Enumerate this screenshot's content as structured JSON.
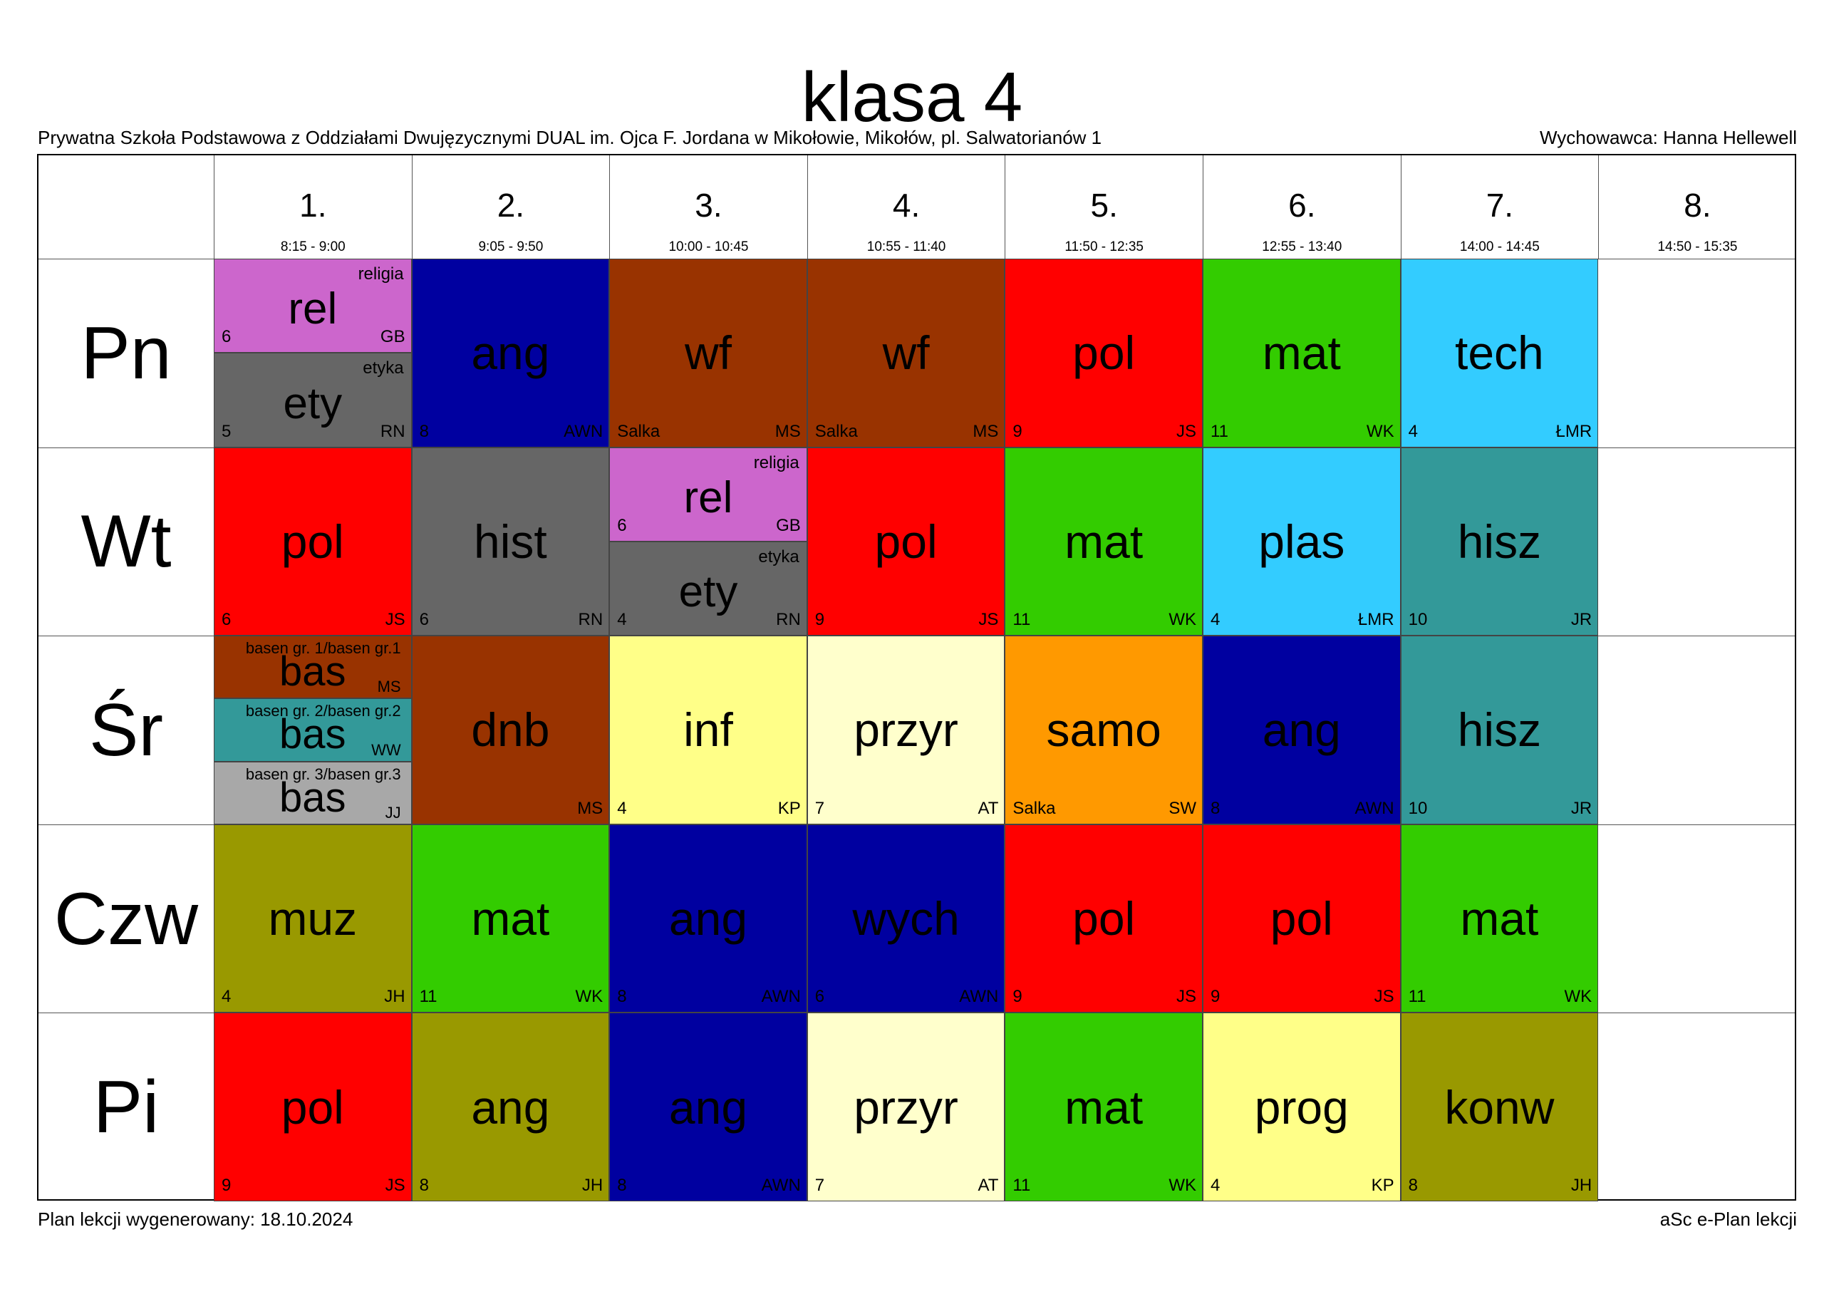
{
  "title": "klasa 4",
  "school": "Prywatna Szkoła Podstawowa z Oddziałami Dwujęzycznymi DUAL im. Ojca F. Jordana w Mikołowie, Mikołów, pl. Salwatorianów 1",
  "homeroom": "Wychowawca: Hanna Hellewell",
  "footer": {
    "generated": "Plan lekcji wygenerowany: 18.10.2024",
    "software": "aSc e-Plan lekcji"
  },
  "colors": {
    "rel": "#CC66CC",
    "ety": "#666666",
    "ang_blue": "#0000A0",
    "wf": "#993300",
    "pol": "#FF0000",
    "mat": "#33CC00",
    "tech": "#33CCFF",
    "hist": "#666666",
    "plas": "#33CCFF",
    "hisz": "#339999",
    "bas1": "#993300",
    "bas2": "#339999",
    "bas3": "#A8A8A8",
    "dnb": "#993300",
    "inf": "#FFFF88",
    "przyr": "#FFFFCC",
    "samo": "#FF9900",
    "muz": "#999900",
    "ang_olive": "#999900",
    "prog": "#FFFF88",
    "konw": "#999900"
  },
  "periods": [
    {
      "num": "1.",
      "time": "8:15 - 9:00"
    },
    {
      "num": "2.",
      "time": "9:05 - 9:50"
    },
    {
      "num": "3.",
      "time": "10:00 - 10:45"
    },
    {
      "num": "4.",
      "time": "10:55 - 11:40"
    },
    {
      "num": "5.",
      "time": "11:50 - 12:35"
    },
    {
      "num": "6.",
      "time": "12:55 - 13:40"
    },
    {
      "num": "7.",
      "time": "14:00 - 14:45"
    },
    {
      "num": "8.",
      "time": "14:50 - 15:35"
    }
  ],
  "days": [
    "Pn",
    "Wt",
    "Śr",
    "Czw",
    "Pi"
  ],
  "lessons": [
    {
      "day": 0,
      "period": 0,
      "subject": "rel",
      "fullname": "religia",
      "room": "6",
      "teacher": "GB",
      "color": "#CC66CC",
      "part": 0,
      "parts": 2
    },
    {
      "day": 0,
      "period": 0,
      "subject": "ety",
      "fullname": "etyka",
      "room": "5",
      "teacher": "RN",
      "color": "#666666",
      "part": 1,
      "parts": 2
    },
    {
      "day": 0,
      "period": 1,
      "subject": "ang",
      "room": "8",
      "teacher": "AWN",
      "color": "#0000A0"
    },
    {
      "day": 0,
      "period": 2,
      "subject": "wf",
      "room": "Salka",
      "teacher": "MS",
      "color": "#993300"
    },
    {
      "day": 0,
      "period": 3,
      "subject": "wf",
      "room": "Salka",
      "teacher": "MS",
      "color": "#993300"
    },
    {
      "day": 0,
      "period": 4,
      "subject": "pol",
      "room": "9",
      "teacher": "JS",
      "color": "#FF0000"
    },
    {
      "day": 0,
      "period": 5,
      "subject": "mat",
      "room": "11",
      "teacher": "WK",
      "color": "#33CC00"
    },
    {
      "day": 0,
      "period": 6,
      "subject": "tech",
      "room": "4",
      "teacher": "ŁMR",
      "color": "#33CCFF"
    },
    {
      "day": 1,
      "period": 0,
      "subject": "pol",
      "room": "6",
      "teacher": "JS",
      "color": "#FF0000"
    },
    {
      "day": 1,
      "period": 1,
      "subject": "hist",
      "room": "6",
      "teacher": "RN",
      "color": "#666666"
    },
    {
      "day": 1,
      "period": 2,
      "subject": "rel",
      "fullname": "religia",
      "room": "6",
      "teacher": "GB",
      "color": "#CC66CC",
      "part": 0,
      "parts": 2
    },
    {
      "day": 1,
      "period": 2,
      "subject": "ety",
      "fullname": "etyka",
      "room": "4",
      "teacher": "RN",
      "color": "#666666",
      "part": 1,
      "parts": 2
    },
    {
      "day": 1,
      "period": 3,
      "subject": "pol",
      "room": "9",
      "teacher": "JS",
      "color": "#FF0000"
    },
    {
      "day": 1,
      "period": 4,
      "subject": "mat",
      "room": "11",
      "teacher": "WK",
      "color": "#33CC00"
    },
    {
      "day": 1,
      "period": 5,
      "subject": "plas",
      "room": "4",
      "teacher": "ŁMR",
      "color": "#33CCFF"
    },
    {
      "day": 1,
      "period": 6,
      "subject": "hisz",
      "room": "10",
      "teacher": "JR",
      "color": "#339999"
    },
    {
      "day": 2,
      "period": 0,
      "subject": "bas",
      "fullname": "basen gr. 1/basen gr.1",
      "teacher": "MS",
      "color": "#993300",
      "part": 0,
      "parts": 3
    },
    {
      "day": 2,
      "period": 0,
      "subject": "bas",
      "fullname": "basen gr. 2/basen gr.2",
      "teacher": "WW",
      "color": "#339999",
      "part": 1,
      "parts": 3
    },
    {
      "day": 2,
      "period": 0,
      "subject": "bas",
      "fullname": "basen gr. 3/basen gr.3",
      "teacher": "JJ",
      "color": "#A8A8A8",
      "part": 2,
      "parts": 3
    },
    {
      "day": 2,
      "period": 1,
      "subject": "dnb",
      "room": "",
      "teacher": "MS",
      "color": "#993300"
    },
    {
      "day": 2,
      "period": 2,
      "subject": "inf",
      "room": "4",
      "teacher": "KP",
      "color": "#FFFF88"
    },
    {
      "day": 2,
      "period": 3,
      "subject": "przyr",
      "room": "7",
      "teacher": "AT",
      "color": "#FFFFCC"
    },
    {
      "day": 2,
      "period": 4,
      "subject": "samo",
      "room": "Salka",
      "teacher": "SW",
      "color": "#FF9900"
    },
    {
      "day": 2,
      "period": 5,
      "subject": "ang",
      "room": "8",
      "teacher": "AWN",
      "color": "#0000A0"
    },
    {
      "day": 2,
      "period": 6,
      "subject": "hisz",
      "room": "10",
      "teacher": "JR",
      "color": "#339999"
    },
    {
      "day": 3,
      "period": 0,
      "subject": "muz",
      "room": "4",
      "teacher": "JH",
      "color": "#999900"
    },
    {
      "day": 3,
      "period": 1,
      "subject": "mat",
      "room": "11",
      "teacher": "WK",
      "color": "#33CC00"
    },
    {
      "day": 3,
      "period": 2,
      "subject": "ang",
      "room": "8",
      "teacher": "AWN",
      "color": "#0000A0"
    },
    {
      "day": 3,
      "period": 3,
      "subject": "wych",
      "room": "6",
      "teacher": "AWN",
      "color": "#0000A0"
    },
    {
      "day": 3,
      "period": 4,
      "subject": "pol",
      "room": "9",
      "teacher": "JS",
      "color": "#FF0000"
    },
    {
      "day": 3,
      "period": 5,
      "subject": "pol",
      "room": "9",
      "teacher": "JS",
      "color": "#FF0000"
    },
    {
      "day": 3,
      "period": 6,
      "subject": "mat",
      "room": "11",
      "teacher": "WK",
      "color": "#33CC00"
    },
    {
      "day": 4,
      "period": 0,
      "subject": "pol",
      "room": "9",
      "teacher": "JS",
      "color": "#FF0000"
    },
    {
      "day": 4,
      "period": 1,
      "subject": "ang",
      "room": "8",
      "teacher": "JH",
      "color": "#999900"
    },
    {
      "day": 4,
      "period": 2,
      "subject": "ang",
      "room": "8",
      "teacher": "AWN",
      "color": "#0000A0"
    },
    {
      "day": 4,
      "period": 3,
      "subject": "przyr",
      "room": "7",
      "teacher": "AT",
      "color": "#FFFFCC"
    },
    {
      "day": 4,
      "period": 4,
      "subject": "mat",
      "room": "11",
      "teacher": "WK",
      "color": "#33CC00"
    },
    {
      "day": 4,
      "period": 5,
      "subject": "prog",
      "room": "4",
      "teacher": "KP",
      "color": "#FFFF88"
    },
    {
      "day": 4,
      "period": 6,
      "subject": "konw",
      "room": "8",
      "teacher": "JH",
      "color": "#999900"
    }
  ]
}
